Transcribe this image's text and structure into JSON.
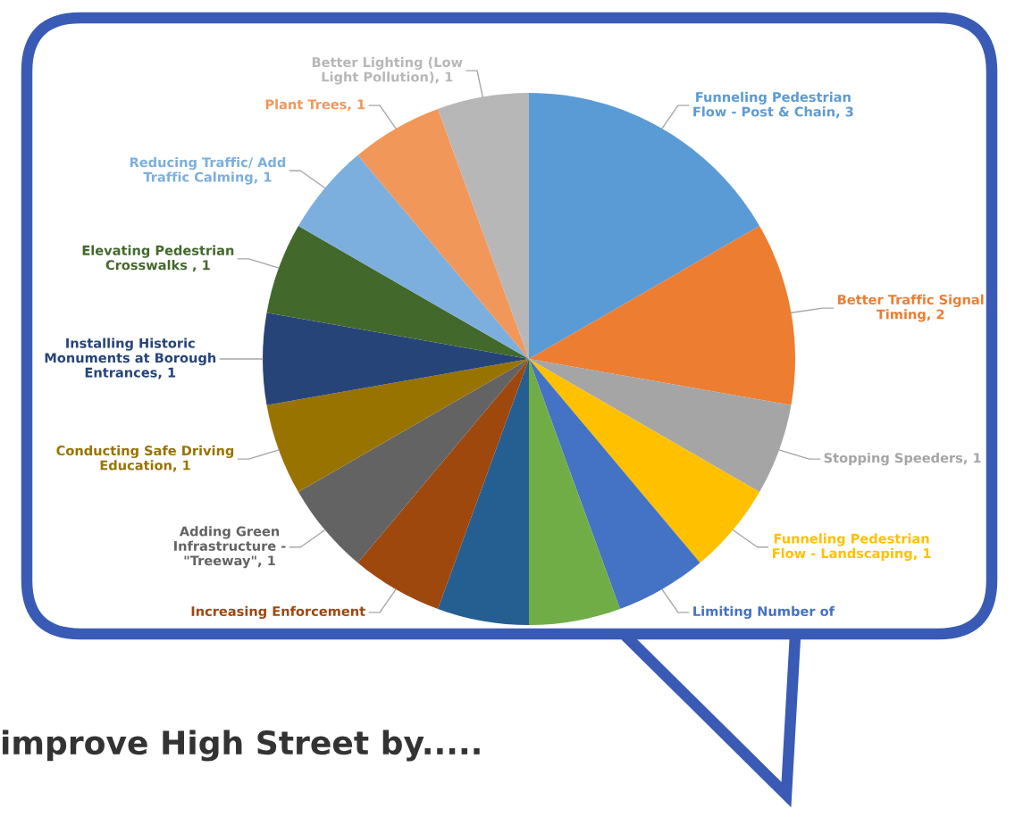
{
  "chart_data": {
    "type": "pie",
    "title": "improve High Street by.....",
    "categories": [
      "Funneling Pedestrian Flow - Post & Chain",
      "Better Traffic Signal Timing",
      "Stopping Speeders",
      "Funneling Pedestrian Flow - Landscaping",
      "Limiting Number of",
      null,
      null,
      "Increasing Enforcement",
      "Adding Green Infrastructure - \"Treeway\"",
      "Conducting Safe Driving Education",
      "Installing Historic Monuments at Borough Entrances",
      "Elevating Pedestrian Crosswalks ",
      "Reducing Traffic/ Add Traffic Calming",
      "Plant Trees",
      "Better Lighting (Low Light Pollution)"
    ],
    "values": [
      3,
      2,
      1,
      1,
      1,
      1,
      1,
      1,
      1,
      1,
      1,
      1,
      1,
      1,
      1
    ],
    "value_labels": [
      "3",
      "2",
      "1",
      "1",
      null,
      null,
      null,
      null,
      "1",
      "1",
      "1",
      "1",
      "1",
      "1",
      "1"
    ],
    "colors": [
      "#5b9bd5",
      "#ed7d31",
      "#a5a5a5",
      "#ffc000",
      "#4472c4",
      "#70ad47",
      "#255e91",
      "#9e480e",
      "#636363",
      "#997300",
      "#264478",
      "#43682b",
      "#7cafdd",
      "#f1975a",
      "#b7b7b7"
    ],
    "legend": false
  }
}
